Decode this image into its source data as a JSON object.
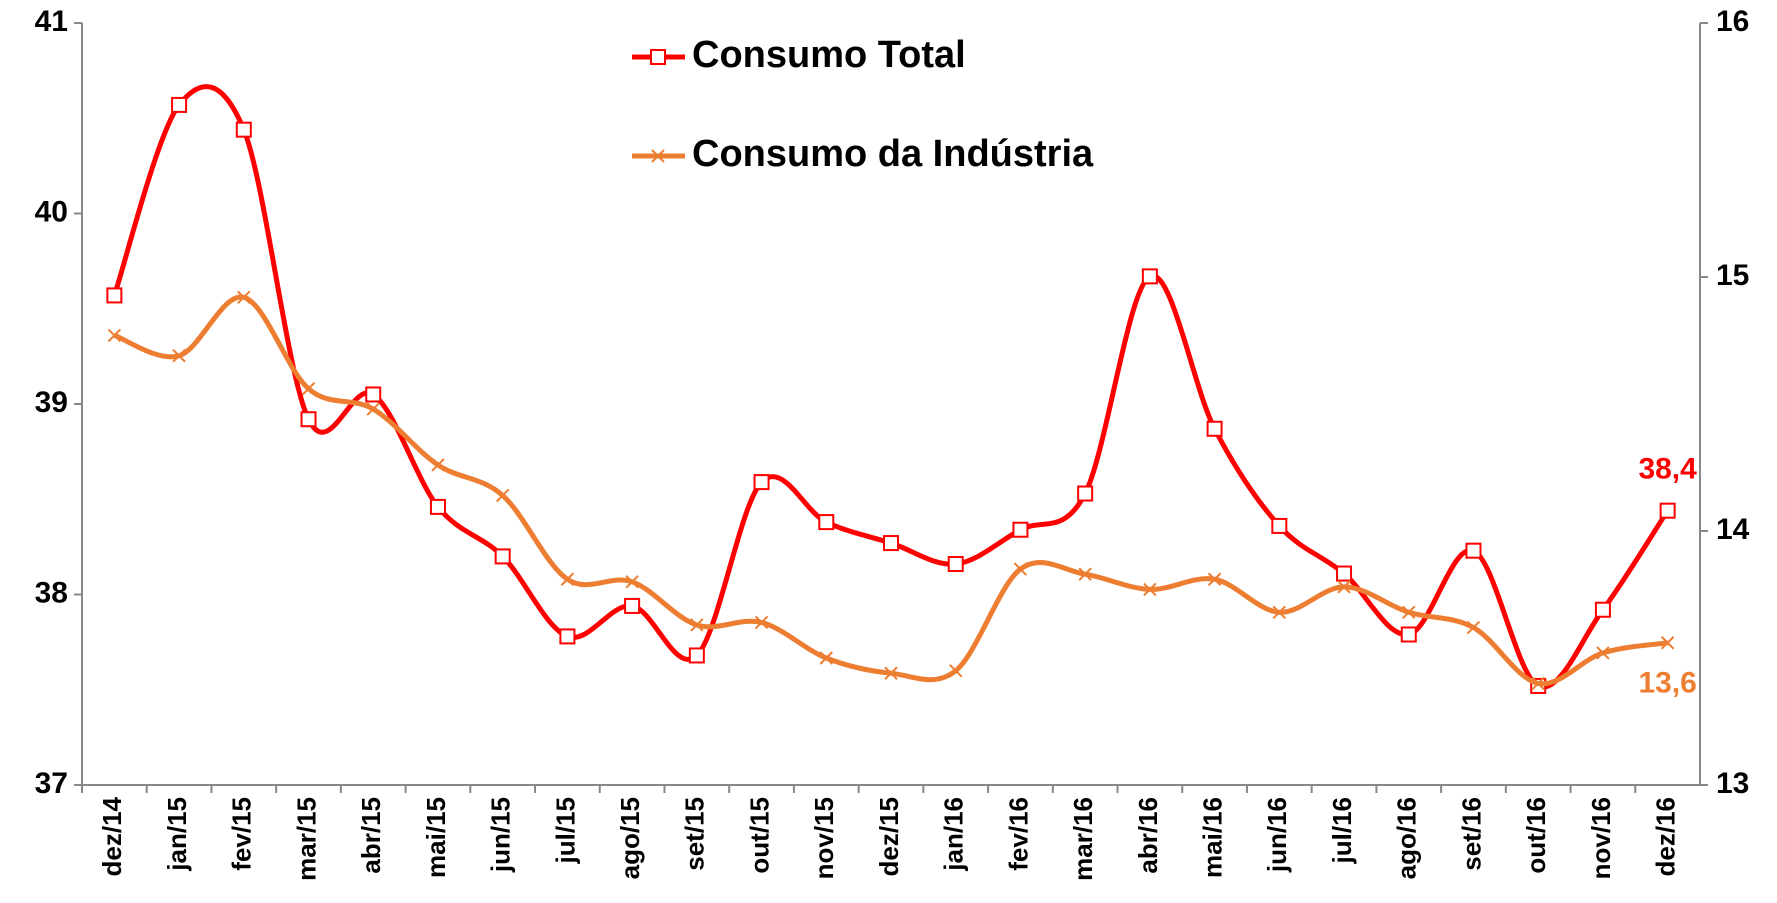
{
  "chart_data": {
    "type": "line",
    "categories": [
      "dez/14",
      "jan/15",
      "fev/15",
      "mar/15",
      "abr/15",
      "mai/15",
      "jun/15",
      "jul/15",
      "ago/15",
      "set/15",
      "out/15",
      "nov/15",
      "dez/15",
      "jan/16",
      "fev/16",
      "mar/16",
      "abr/16",
      "mai/16",
      "jun/16",
      "jul/16",
      "ago/16",
      "set/16",
      "out/16",
      "nov/16",
      "dez/16"
    ],
    "series": [
      {
        "name": "Consumo Total",
        "color": "#ff0000",
        "marker": "square",
        "axis": "y",
        "values": [
          39.57,
          40.57,
          40.44,
          38.92,
          39.05,
          38.46,
          38.2,
          37.78,
          37.94,
          37.68,
          38.59,
          38.38,
          38.27,
          38.16,
          38.34,
          38.53,
          39.67,
          38.87,
          38.36,
          38.11,
          37.79,
          38.23,
          37.52,
          37.92,
          38.44
        ],
        "value_labels": [
          null,
          null,
          null,
          null,
          null,
          null,
          null,
          null,
          null,
          null,
          null,
          null,
          null,
          null,
          null,
          null,
          null,
          null,
          null,
          null,
          null,
          null,
          null,
          null,
          "38,4"
        ]
      },
      {
        "name": "Consumo da Indústria",
        "color": "#ed7d31",
        "marker": "x",
        "axis": "y2",
        "values": [
          14.77,
          14.69,
          14.92,
          14.56,
          14.48,
          14.26,
          14.14,
          13.81,
          13.8,
          13.63,
          13.64,
          13.5,
          13.44,
          13.45,
          13.85,
          13.83,
          13.77,
          13.81,
          13.68,
          13.78,
          13.68,
          13.62,
          13.4,
          13.52,
          13.56
        ],
        "value_labels": [
          null,
          null,
          null,
          null,
          null,
          null,
          null,
          null,
          null,
          null,
          null,
          null,
          null,
          null,
          null,
          null,
          null,
          null,
          null,
          null,
          null,
          null,
          null,
          null,
          "13,6"
        ]
      }
    ],
    "ylim": [
      37,
      41
    ],
    "yticks": [
      37,
      38,
      39,
      40,
      41
    ],
    "y2lim": [
      13,
      16
    ],
    "y2ticks": [
      13,
      14,
      15,
      16
    ],
    "grid": false,
    "smooth": true
  }
}
